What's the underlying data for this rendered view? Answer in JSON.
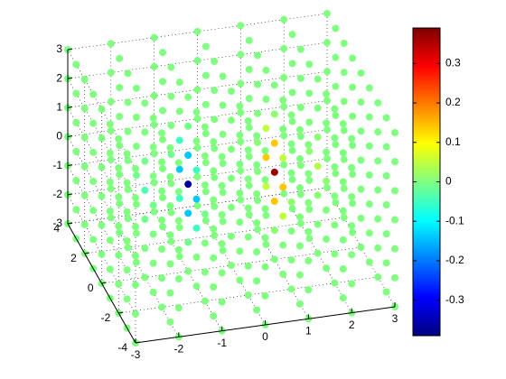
{
  "chart_data": {
    "type": "scatter3",
    "x": [
      -3,
      -2,
      -1,
      0,
      1,
      2,
      3
    ],
    "y": [
      -4,
      -3,
      -2,
      -1,
      0,
      1,
      2,
      3,
      4
    ],
    "z": [
      -3,
      -2,
      -1,
      0,
      1,
      2,
      3
    ],
    "values": [
      [
        [
          0,
          0,
          0,
          0,
          0,
          0,
          0
        ],
        [
          0,
          0,
          0,
          0,
          0,
          0,
          0
        ],
        [
          0,
          0,
          0,
          0,
          0,
          0,
          0
        ],
        [
          0,
          0,
          0,
          0,
          0,
          0,
          0
        ],
        [
          0,
          0,
          0,
          0,
          0,
          0,
          0
        ],
        [
          0,
          0,
          0,
          0,
          0,
          0,
          0
        ],
        [
          0,
          0,
          0,
          0,
          0,
          0,
          0
        ],
        [
          0,
          0,
          0,
          0,
          0,
          0,
          0
        ],
        [
          0,
          0,
          0,
          0,
          0,
          0,
          0
        ]
      ],
      [
        [
          0,
          0,
          0,
          0,
          0,
          0,
          0
        ],
        [
          0,
          0,
          0,
          0,
          0,
          0,
          0
        ],
        [
          0,
          0,
          0,
          0,
          0,
          0,
          0
        ],
        [
          0,
          0,
          0,
          0,
          0,
          0,
          0
        ],
        [
          0,
          0,
          -0.01,
          0,
          0.01,
          0,
          0
        ],
        [
          0,
          0,
          0,
          0,
          0,
          0,
          0
        ],
        [
          0,
          0,
          0,
          0,
          0,
          0,
          0
        ],
        [
          0,
          0,
          0,
          0,
          0,
          0,
          0
        ],
        [
          0,
          0,
          0,
          0,
          0,
          0,
          0
        ]
      ],
      [
        [
          0,
          0,
          0,
          0,
          0,
          0,
          0
        ],
        [
          0,
          0,
          0,
          0,
          0,
          0,
          0
        ],
        [
          0,
          0,
          0,
          0,
          0,
          0,
          0
        ],
        [
          0,
          0,
          -0.05,
          0,
          0.05,
          0,
          0
        ],
        [
          0,
          -0.01,
          -0.14,
          0,
          0.14,
          0.01,
          0
        ],
        [
          0,
          0,
          -0.05,
          0,
          0.05,
          0,
          0
        ],
        [
          0,
          0,
          0,
          0,
          0,
          0,
          0
        ],
        [
          0,
          0,
          0,
          0,
          0,
          0,
          0
        ],
        [
          0,
          0,
          0,
          0,
          0,
          0,
          0
        ]
      ],
      [
        [
          0,
          0,
          0,
          0,
          0,
          0,
          0
        ],
        [
          0,
          0,
          0,
          0,
          0,
          0,
          0
        ],
        [
          0,
          0,
          -0.01,
          0,
          0.01,
          0,
          0
        ],
        [
          0,
          -0.01,
          -0.14,
          0,
          0.14,
          0.01,
          0
        ],
        [
          0,
          -0.04,
          -0.37,
          0,
          0.37,
          0.04,
          0
        ],
        [
          0,
          -0.01,
          -0.14,
          0,
          0.14,
          0.01,
          0
        ],
        [
          0,
          0,
          -0.01,
          0,
          0.01,
          0,
          0
        ],
        [
          0,
          0,
          0,
          0,
          0,
          0,
          0
        ],
        [
          0,
          0,
          0,
          0,
          0,
          0,
          0
        ]
      ],
      [
        [
          0,
          0,
          0,
          0,
          0,
          0,
          0
        ],
        [
          0,
          0,
          0,
          0,
          0,
          0,
          0
        ],
        [
          0,
          0,
          0,
          0,
          0,
          0,
          0
        ],
        [
          0,
          0,
          -0.05,
          0,
          0.05,
          0,
          0
        ],
        [
          0,
          -0.01,
          -0.14,
          0,
          0.14,
          0.01,
          0
        ],
        [
          0,
          0,
          -0.05,
          0,
          0.05,
          0,
          0
        ],
        [
          0,
          0,
          0,
          0,
          0,
          0,
          0
        ],
        [
          0,
          0,
          0,
          0,
          0,
          0,
          0
        ],
        [
          0,
          0,
          0,
          0,
          0,
          0,
          0
        ]
      ],
      [
        [
          0,
          0,
          0,
          0,
          0,
          0,
          0
        ],
        [
          0,
          0,
          0,
          0,
          0,
          0,
          0
        ],
        [
          0,
          0,
          0,
          0,
          0,
          0,
          0
        ],
        [
          0,
          0,
          0,
          0,
          0,
          0,
          0
        ],
        [
          0,
          0,
          -0.01,
          0,
          0.01,
          0,
          0
        ],
        [
          0,
          0,
          0,
          0,
          0,
          0,
          0
        ],
        [
          0,
          0,
          0,
          0,
          0,
          0,
          0
        ],
        [
          0,
          0,
          0,
          0,
          0,
          0,
          0
        ],
        [
          0,
          0,
          0,
          0,
          0,
          0,
          0
        ]
      ],
      [
        [
          0,
          0,
          0,
          0,
          0,
          0,
          0
        ],
        [
          0,
          0,
          0,
          0,
          0,
          0,
          0
        ],
        [
          0,
          0,
          0,
          0,
          0,
          0,
          0
        ],
        [
          0,
          0,
          0,
          0,
          0,
          0,
          0
        ],
        [
          0,
          0,
          0,
          0,
          0,
          0,
          0
        ],
        [
          0,
          0,
          0,
          0,
          0,
          0,
          0
        ],
        [
          0,
          0,
          0,
          0,
          0,
          0,
          0
        ],
        [
          0,
          0,
          0,
          0,
          0,
          0,
          0
        ],
        [
          0,
          0,
          0,
          0,
          0,
          0,
          0
        ]
      ]
    ],
    "xlim": [
      -3,
      3
    ],
    "ylim": [
      -4,
      4
    ],
    "zlim": [
      -3,
      3
    ],
    "xticks": [
      -3,
      -2,
      -1,
      0,
      1,
      2,
      3
    ],
    "yticks": [
      -4,
      -2,
      0,
      2,
      4
    ],
    "zticks": [
      -3,
      -2,
      -1,
      0,
      1,
      2,
      3
    ],
    "colormap": "jet",
    "clim": [
      -0.39,
      0.39
    ],
    "cticks": [
      -0.3,
      -0.2,
      -0.1,
      0,
      0.1,
      0.2,
      0.3
    ],
    "grid": true
  }
}
